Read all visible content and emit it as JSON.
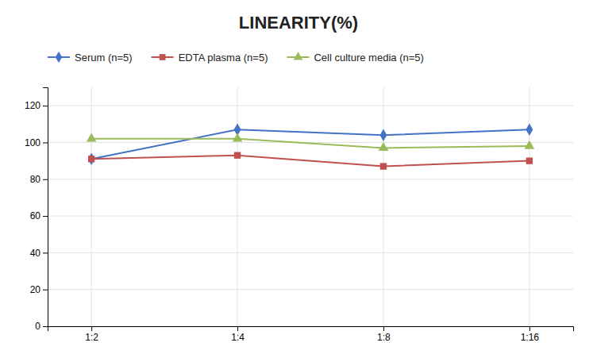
{
  "chart_data": {
    "type": "line",
    "title": "LINEARITY(%)",
    "categories": [
      "1:2",
      "1:4",
      "1:8",
      "1:16"
    ],
    "series": [
      {
        "name": "Serum (n=5)",
        "color": "#4472C4",
        "marker": "diamond",
        "values": [
          91,
          107,
          104,
          107
        ]
      },
      {
        "name": "EDTA plasma (n=5)",
        "color": "#C0504D",
        "marker": "square",
        "values": [
          91,
          93,
          87,
          90
        ]
      },
      {
        "name": "Cell culture media (n=5)",
        "color": "#9BBB59",
        "marker": "triangle",
        "values": [
          102,
          102,
          97,
          98
        ]
      }
    ],
    "ylim": [
      0,
      130
    ],
    "yticks": [
      0,
      20,
      40,
      60,
      80,
      100,
      120
    ],
    "grid": true,
    "legend": "top"
  }
}
